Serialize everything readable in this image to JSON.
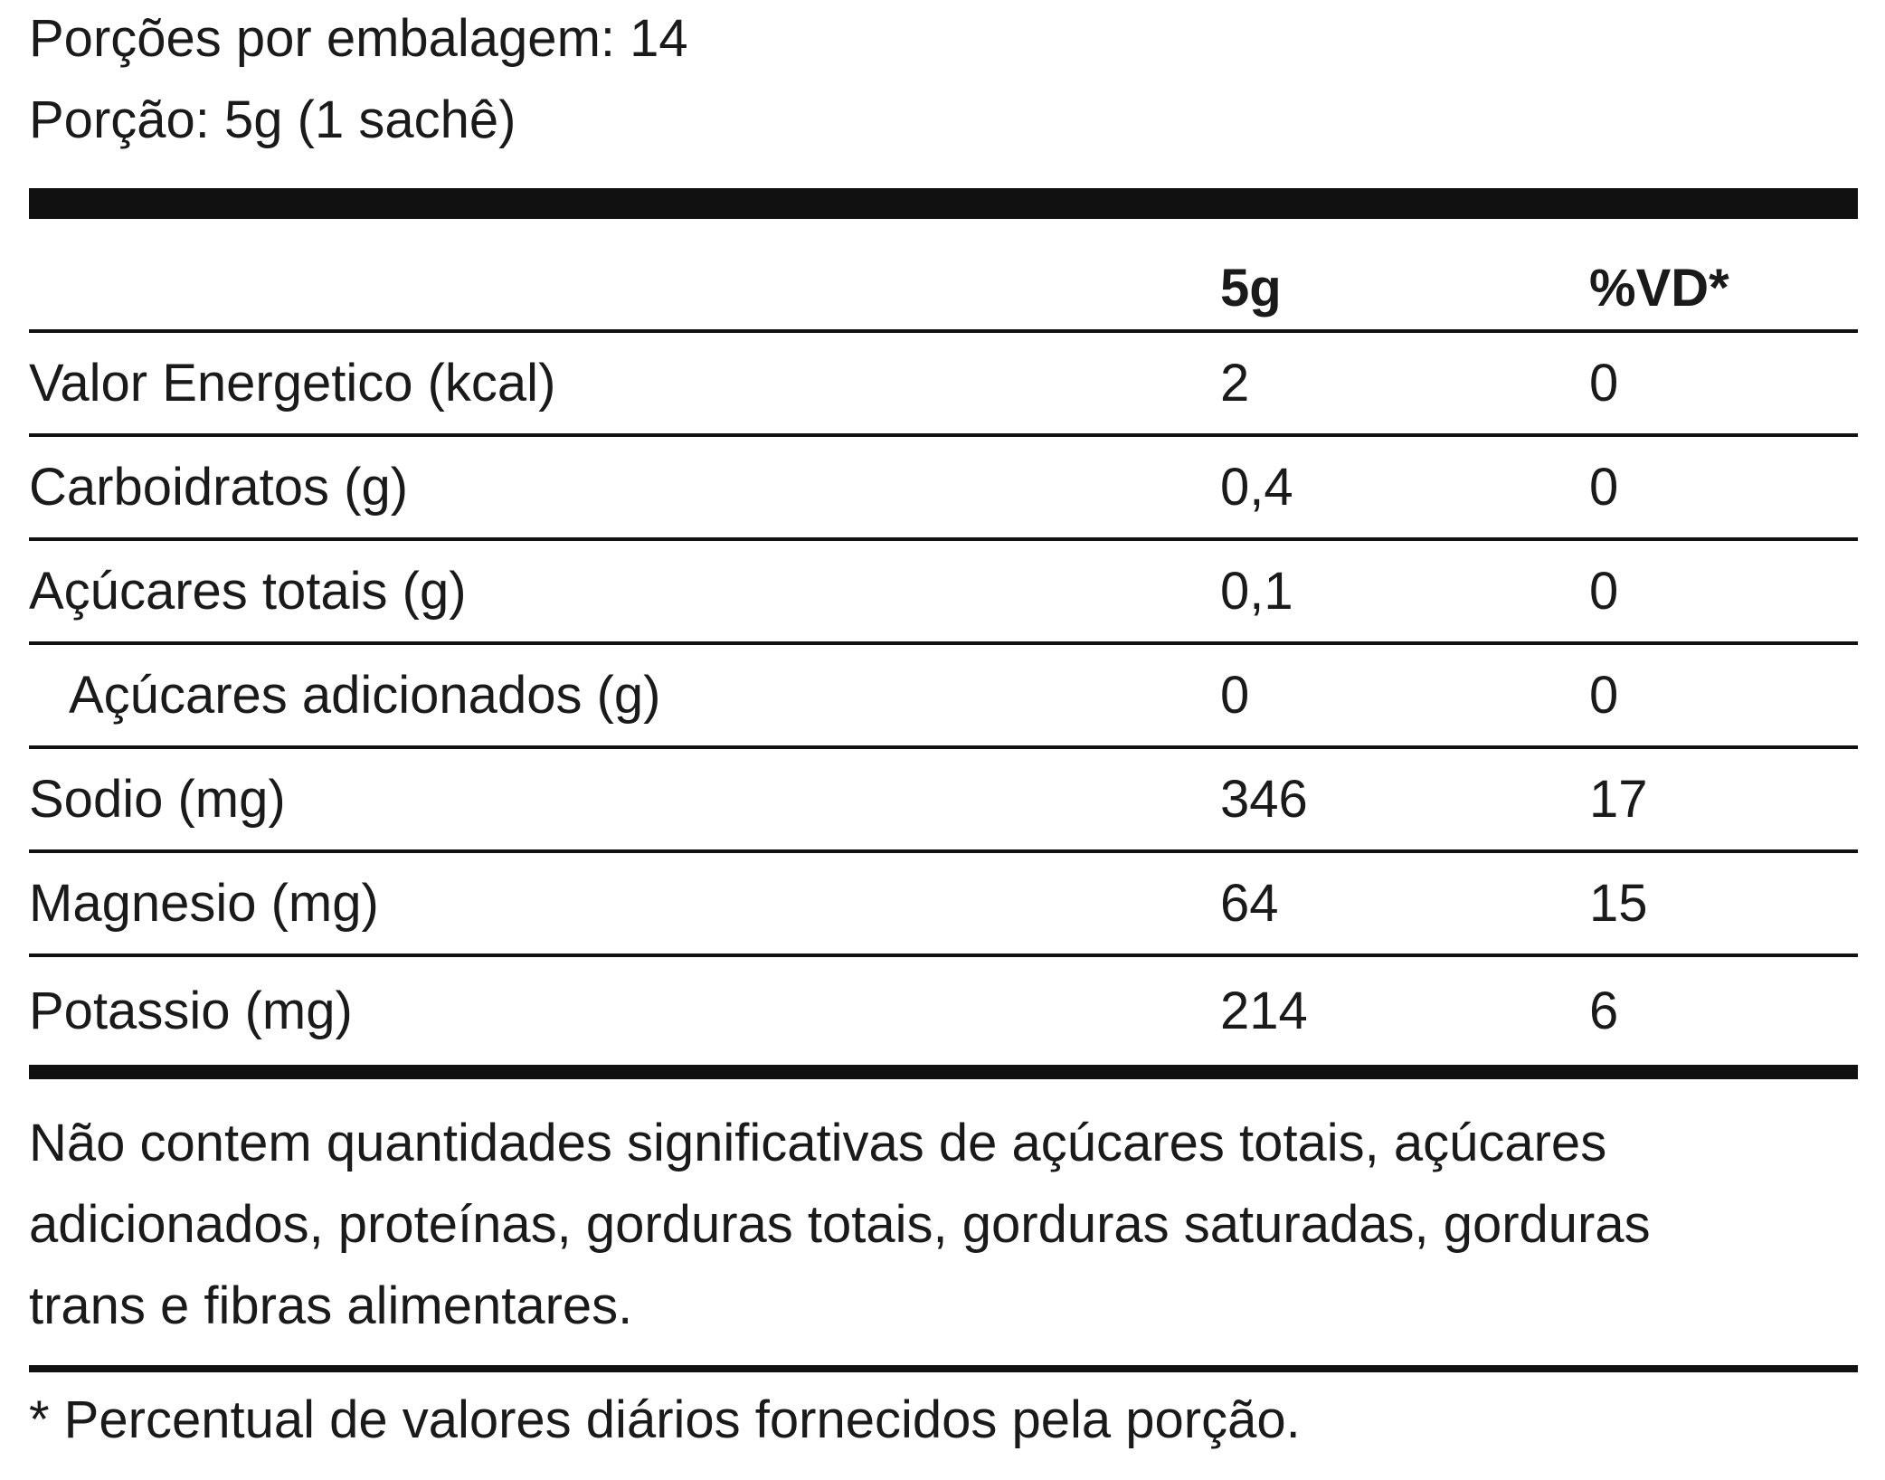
{
  "serving": {
    "per_package": "Porções por embalagem: 14",
    "portion": "Porção: 5g (1 sachê)"
  },
  "table": {
    "header": {
      "amount": "5g",
      "daily_value": "%VD*"
    },
    "rows": [
      {
        "name": "Valor Energetico (kcal)",
        "amount": "2",
        "dv": "0"
      },
      {
        "name": "Carboidratos (g)",
        "amount": "0,4",
        "dv": "0"
      },
      {
        "name": "Açúcares totais (g)",
        "amount": "0,1",
        "dv": "0"
      },
      {
        "name": "Açúcares adicionados (g)",
        "amount": "0",
        "dv": "0"
      },
      {
        "name": "Sodio (mg)",
        "amount": "346",
        "dv": "17"
      },
      {
        "name": "Magnesio (mg)",
        "amount": "64",
        "dv": "15"
      },
      {
        "name": "Potassio (mg)",
        "amount": "214",
        "dv": "6"
      }
    ]
  },
  "notes": {
    "not_significant_line1": "Não contem quantidades significativas de açúcares totais, açúcares",
    "not_significant_line2": "adicionados, proteínas, gorduras totais, gorduras saturadas, gorduras",
    "not_significant_line3": "trans e fibras alimentares.",
    "daily_value_note": "* Percentual de valores diários fornecidos pela porção."
  }
}
